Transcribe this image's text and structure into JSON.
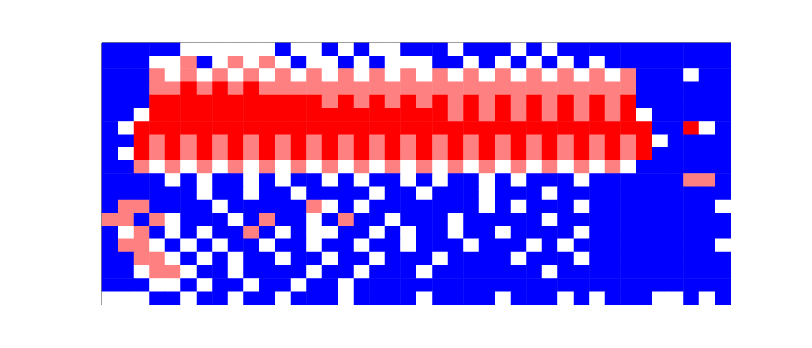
{
  "chart_data": {
    "type": "heatmap",
    "tick_labels": false,
    "zlim": [
      0,
      4
    ],
    "cells": [
      [
        0,
        0,
        0,
        0,
        0,
        2,
        2,
        2,
        2,
        2,
        2,
        0,
        2,
        2,
        0,
        2,
        0,
        2,
        2,
        0,
        0,
        0,
        2,
        0,
        0,
        0,
        2,
        0,
        2,
        0,
        0,
        0,
        0,
        0,
        0,
        0,
        0,
        0,
        0,
        0
      ],
      [
        0,
        0,
        0,
        2,
        2,
        3,
        0,
        2,
        3,
        2,
        3,
        2,
        0,
        2,
        2,
        0,
        2,
        0,
        2,
        2,
        2,
        0,
        0,
        2,
        0,
        2,
        0,
        2,
        0,
        2,
        0,
        2,
        0,
        0,
        0,
        0,
        0,
        0,
        0,
        0
      ],
      [
        0,
        0,
        0,
        3,
        2,
        3,
        2,
        3,
        2,
        3,
        2,
        3,
        2,
        3,
        2,
        3,
        2,
        3,
        2,
        3,
        2,
        3,
        2,
        3,
        2,
        3,
        2,
        3,
        2,
        3,
        2,
        3,
        2,
        3,
        0,
        0,
        0,
        2,
        0,
        0
      ],
      [
        0,
        0,
        0,
        3,
        3,
        4,
        3,
        4,
        3,
        4,
        3,
        3,
        3,
        3,
        3,
        3,
        3,
        3,
        3,
        3,
        3,
        3,
        3,
        3,
        3,
        3,
        3,
        3,
        3,
        3,
        3,
        3,
        3,
        3,
        0,
        0,
        0,
        0,
        0,
        0
      ],
      [
        0,
        0,
        0,
        4,
        4,
        4,
        4,
        4,
        4,
        4,
        4,
        4,
        4,
        4,
        3,
        4,
        3,
        4,
        3,
        4,
        3,
        4,
        3,
        4,
        3,
        4,
        3,
        4,
        3,
        4,
        3,
        4,
        3,
        4,
        0,
        0,
        0,
        0,
        0,
        0
      ],
      [
        0,
        0,
        2,
        4,
        4,
        4,
        4,
        4,
        4,
        4,
        4,
        4,
        4,
        4,
        4,
        4,
        4,
        4,
        4,
        4,
        4,
        4,
        3,
        4,
        3,
        4,
        3,
        4,
        3,
        4,
        3,
        4,
        3,
        4,
        2,
        0,
        0,
        0,
        0,
        0
      ],
      [
        0,
        2,
        4,
        4,
        4,
        4,
        4,
        4,
        4,
        4,
        4,
        4,
        4,
        4,
        4,
        4,
        4,
        4,
        4,
        4,
        4,
        4,
        4,
        4,
        4,
        4,
        4,
        4,
        4,
        4,
        4,
        4,
        4,
        4,
        4,
        0,
        0,
        4,
        2,
        0
      ],
      [
        0,
        0,
        4,
        3,
        4,
        3,
        4,
        3,
        4,
        3,
        4,
        3,
        4,
        3,
        4,
        3,
        4,
        3,
        4,
        3,
        4,
        3,
        4,
        3,
        4,
        3,
        4,
        3,
        4,
        3,
        4,
        3,
        4,
        3,
        4,
        2,
        0,
        0,
        0,
        0
      ],
      [
        0,
        2,
        4,
        3,
        4,
        3,
        4,
        3,
        4,
        3,
        4,
        3,
        4,
        3,
        4,
        3,
        4,
        3,
        4,
        3,
        4,
        3,
        4,
        3,
        4,
        3,
        4,
        3,
        4,
        3,
        4,
        3,
        4,
        3,
        4,
        0,
        0,
        0,
        0,
        0
      ],
      [
        0,
        0,
        3,
        2,
        3,
        2,
        3,
        2,
        3,
        2,
        3,
        2,
        3,
        2,
        3,
        2,
        3,
        2,
        3,
        2,
        3,
        2,
        3,
        2,
        3,
        2,
        3,
        2,
        3,
        2,
        3,
        2,
        3,
        2,
        0,
        0,
        0,
        0,
        0,
        0
      ],
      [
        0,
        0,
        0,
        0,
        2,
        0,
        2,
        0,
        0,
        2,
        0,
        2,
        0,
        0,
        2,
        0,
        2,
        0,
        0,
        2,
        0,
        2,
        0,
        0,
        2,
        0,
        2,
        0,
        0,
        0,
        2,
        0,
        0,
        0,
        0,
        0,
        0,
        3,
        3,
        0
      ],
      [
        0,
        0,
        0,
        0,
        0,
        0,
        2,
        0,
        0,
        2,
        0,
        0,
        2,
        0,
        0,
        0,
        0,
        2,
        0,
        0,
        2,
        0,
        0,
        0,
        2,
        0,
        0,
        0,
        2,
        0,
        0,
        0,
        0,
        0,
        0,
        0,
        0,
        0,
        0,
        0
      ],
      [
        0,
        3,
        3,
        0,
        0,
        0,
        0,
        2,
        0,
        0,
        0,
        0,
        0,
        3,
        2,
        0,
        2,
        0,
        0,
        0,
        0,
        0,
        0,
        0,
        2,
        0,
        2,
        0,
        0,
        0,
        2,
        0,
        0,
        0,
        0,
        0,
        0,
        0,
        0,
        2
      ],
      [
        3,
        3,
        0,
        3,
        2,
        0,
        0,
        0,
        2,
        0,
        3,
        0,
        0,
        2,
        0,
        3,
        0,
        0,
        2,
        0,
        0,
        0,
        2,
        0,
        0,
        0,
        0,
        0,
        2,
        0,
        0,
        0,
        0,
        0,
        0,
        0,
        0,
        0,
        0,
        0
      ],
      [
        0,
        2,
        3,
        0,
        2,
        0,
        2,
        0,
        0,
        3,
        0,
        2,
        0,
        2,
        2,
        0,
        0,
        2,
        0,
        2,
        0,
        0,
        2,
        0,
        0,
        2,
        0,
        0,
        0,
        0,
        2,
        0,
        0,
        0,
        0,
        0,
        0,
        0,
        0,
        0
      ],
      [
        0,
        3,
        3,
        2,
        0,
        2,
        0,
        2,
        0,
        0,
        2,
        0,
        0,
        2,
        0,
        0,
        2,
        0,
        0,
        2,
        0,
        0,
        0,
        2,
        0,
        0,
        0,
        2,
        0,
        2,
        0,
        0,
        0,
        0,
        0,
        0,
        0,
        0,
        0,
        2
      ],
      [
        0,
        0,
        3,
        3,
        2,
        0,
        2,
        0,
        2,
        0,
        0,
        2,
        0,
        0,
        2,
        0,
        0,
        2,
        0,
        0,
        0,
        2,
        0,
        0,
        0,
        0,
        2,
        0,
        0,
        0,
        2,
        0,
        0,
        0,
        0,
        0,
        0,
        0,
        0,
        0
      ],
      [
        0,
        0,
        2,
        3,
        3,
        2,
        0,
        0,
        2,
        0,
        0,
        0,
        0,
        2,
        0,
        0,
        2,
        0,
        0,
        0,
        2,
        0,
        0,
        0,
        0,
        0,
        0,
        0,
        2,
        0,
        0,
        0,
        0,
        0,
        0,
        0,
        0,
        0,
        0,
        0
      ],
      [
        0,
        0,
        0,
        2,
        2,
        0,
        2,
        0,
        0,
        2,
        0,
        0,
        2,
        0,
        0,
        2,
        0,
        0,
        0,
        0,
        0,
        0,
        0,
        0,
        0,
        0,
        0,
        0,
        0,
        0,
        0,
        0,
        0,
        0,
        0,
        0,
        0,
        0,
        0,
        0
      ],
      [
        2,
        2,
        2,
        0,
        0,
        2,
        0,
        0,
        2,
        0,
        0,
        2,
        0,
        0,
        0,
        2,
        0,
        0,
        0,
        0,
        2,
        0,
        0,
        0,
        0,
        2,
        0,
        0,
        0,
        2,
        0,
        2,
        0,
        0,
        0,
        2,
        2,
        0,
        2,
        0
      ]
    ]
  }
}
